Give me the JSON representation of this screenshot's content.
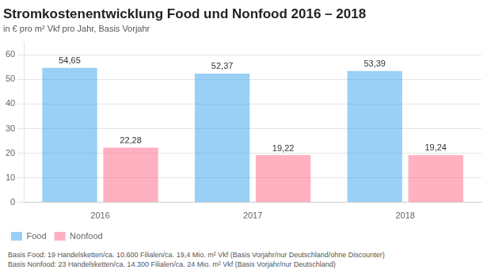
{
  "chart_data": {
    "type": "bar",
    "title": "Stromkostenentwicklung Food und Nonfood 2016 – 2018",
    "subtitle": "in € pro m² Vkf pro Jahr, Basis Vorjahr",
    "categories": [
      "2016",
      "2017",
      "2018"
    ],
    "series": [
      {
        "name": "Food",
        "values": [
          54.65,
          52.37,
          53.39
        ],
        "value_labels": [
          "54,65",
          "52,37",
          "53,39"
        ]
      },
      {
        "name": "Nonfood",
        "values": [
          22.28,
          19.22,
          19.24
        ],
        "value_labels": [
          "22,28",
          "19,22",
          "19,24"
        ]
      }
    ],
    "ylim": [
      0,
      65
    ],
    "yticks": [
      0,
      10,
      20,
      30,
      40,
      50,
      60
    ],
    "grid": true,
    "legend": "lower left",
    "data_labels": true,
    "footnotes": [
      "Basis Food: 19 Handelsketten/ca. 10.600 Filialen/ca. 19,4 Mio. m² Vkf (Basis Vorjahr/nur Deutschland/ohne Discounter)",
      "Basis Nonfood: 23 Handelsketten/ca. 14.300 Filialen/ca. 24 Mio. m² Vkf (Basis Vorjahr/nur Deutschland)"
    ]
  }
}
